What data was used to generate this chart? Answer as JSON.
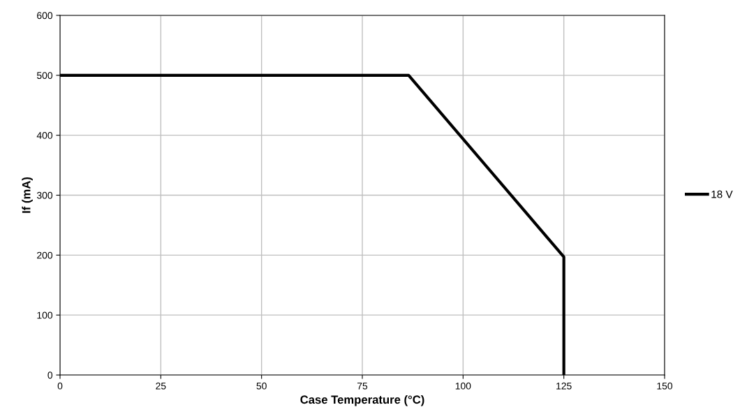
{
  "chart_data": {
    "type": "line",
    "xlabel": "Case Temperature (°C)",
    "ylabel": "If (mA)",
    "x": [
      0,
      86.5,
      125,
      125
    ],
    "series": [
      {
        "name": "18 V",
        "color": "#000000",
        "values": [
          500,
          500,
          197,
          0
        ]
      }
    ],
    "xlim": [
      0,
      150
    ],
    "xticks": [
      0,
      25,
      50,
      75,
      100,
      125,
      150
    ],
    "ylim": [
      0,
      600
    ],
    "yticks": [
      0,
      100,
      200,
      300,
      400,
      500,
      600
    ],
    "grid": true,
    "legend": "right",
    "marker": "none",
    "line_style": "solid"
  }
}
